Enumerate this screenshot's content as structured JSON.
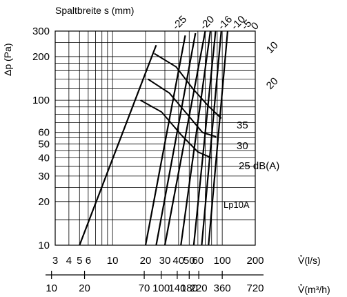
{
  "chart_data": {
    "type": "line",
    "title": "Spaltbreite s (mm)",
    "ylabel": "Δp (Pa)",
    "xlabel": "V̊(l/s)",
    "x2label": "V̊(m³/h)",
    "label_overlay": "Lp10A",
    "x_scale": "log",
    "y_scale": "log",
    "xlim": [
      3,
      200
    ],
    "ylim": [
      10,
      300
    ],
    "grid": true,
    "y_ticks": [
      "10",
      "20",
      "30",
      "40",
      "50",
      "60",
      "100",
      "200",
      "300"
    ],
    "x_ticks": [
      "3",
      "4",
      "5",
      "6",
      "10",
      "20",
      "30",
      "40",
      "50",
      "60",
      "100",
      "200"
    ],
    "x2_ticks": [
      "10",
      "20",
      "70",
      "100",
      "140",
      "180",
      "220",
      "360",
      "720"
    ],
    "series": [
      {
        "name": "-25",
        "points": [
          [
            5,
            10
          ],
          [
            25,
            240
          ]
        ]
      },
      {
        "name": "-20",
        "points": [
          [
            20,
            10
          ],
          [
            46,
            280
          ]
        ]
      },
      {
        "name": "-16",
        "points": [
          [
            25,
            10
          ],
          [
            57,
            290
          ]
        ]
      },
      {
        "name": "-10",
        "points": [
          [
            30,
            10
          ],
          [
            70,
            300
          ]
        ]
      },
      {
        "name": "-5",
        "points": [
          [
            42,
            10
          ],
          [
            78,
            300
          ]
        ]
      },
      {
        "name": "0",
        "points": [
          [
            55,
            10
          ],
          [
            87,
            300
          ]
        ]
      },
      {
        "name": "10",
        "points": [
          [
            65,
            10
          ],
          [
            98,
            300
          ]
        ]
      },
      {
        "name": "20",
        "points": [
          [
            75,
            10
          ],
          [
            112,
            300
          ]
        ]
      }
    ],
    "sound_curves": [
      {
        "name": "25 dB(A)",
        "points": [
          [
            18,
            100
          ],
          [
            28,
            83
          ],
          [
            42,
            58
          ],
          [
            60,
            44
          ],
          [
            80,
            40
          ]
        ]
      },
      {
        "name": "30",
        "points": [
          [
            21,
            140
          ],
          [
            33,
            112
          ],
          [
            48,
            80
          ],
          [
            66,
            60
          ],
          [
            88,
            56
          ]
        ]
      },
      {
        "name": "35",
        "points": [
          [
            24,
            210
          ],
          [
            38,
            170
          ],
          [
            54,
            120
          ],
          [
            74,
            92
          ],
          [
            98,
            75
          ]
        ]
      }
    ]
  }
}
